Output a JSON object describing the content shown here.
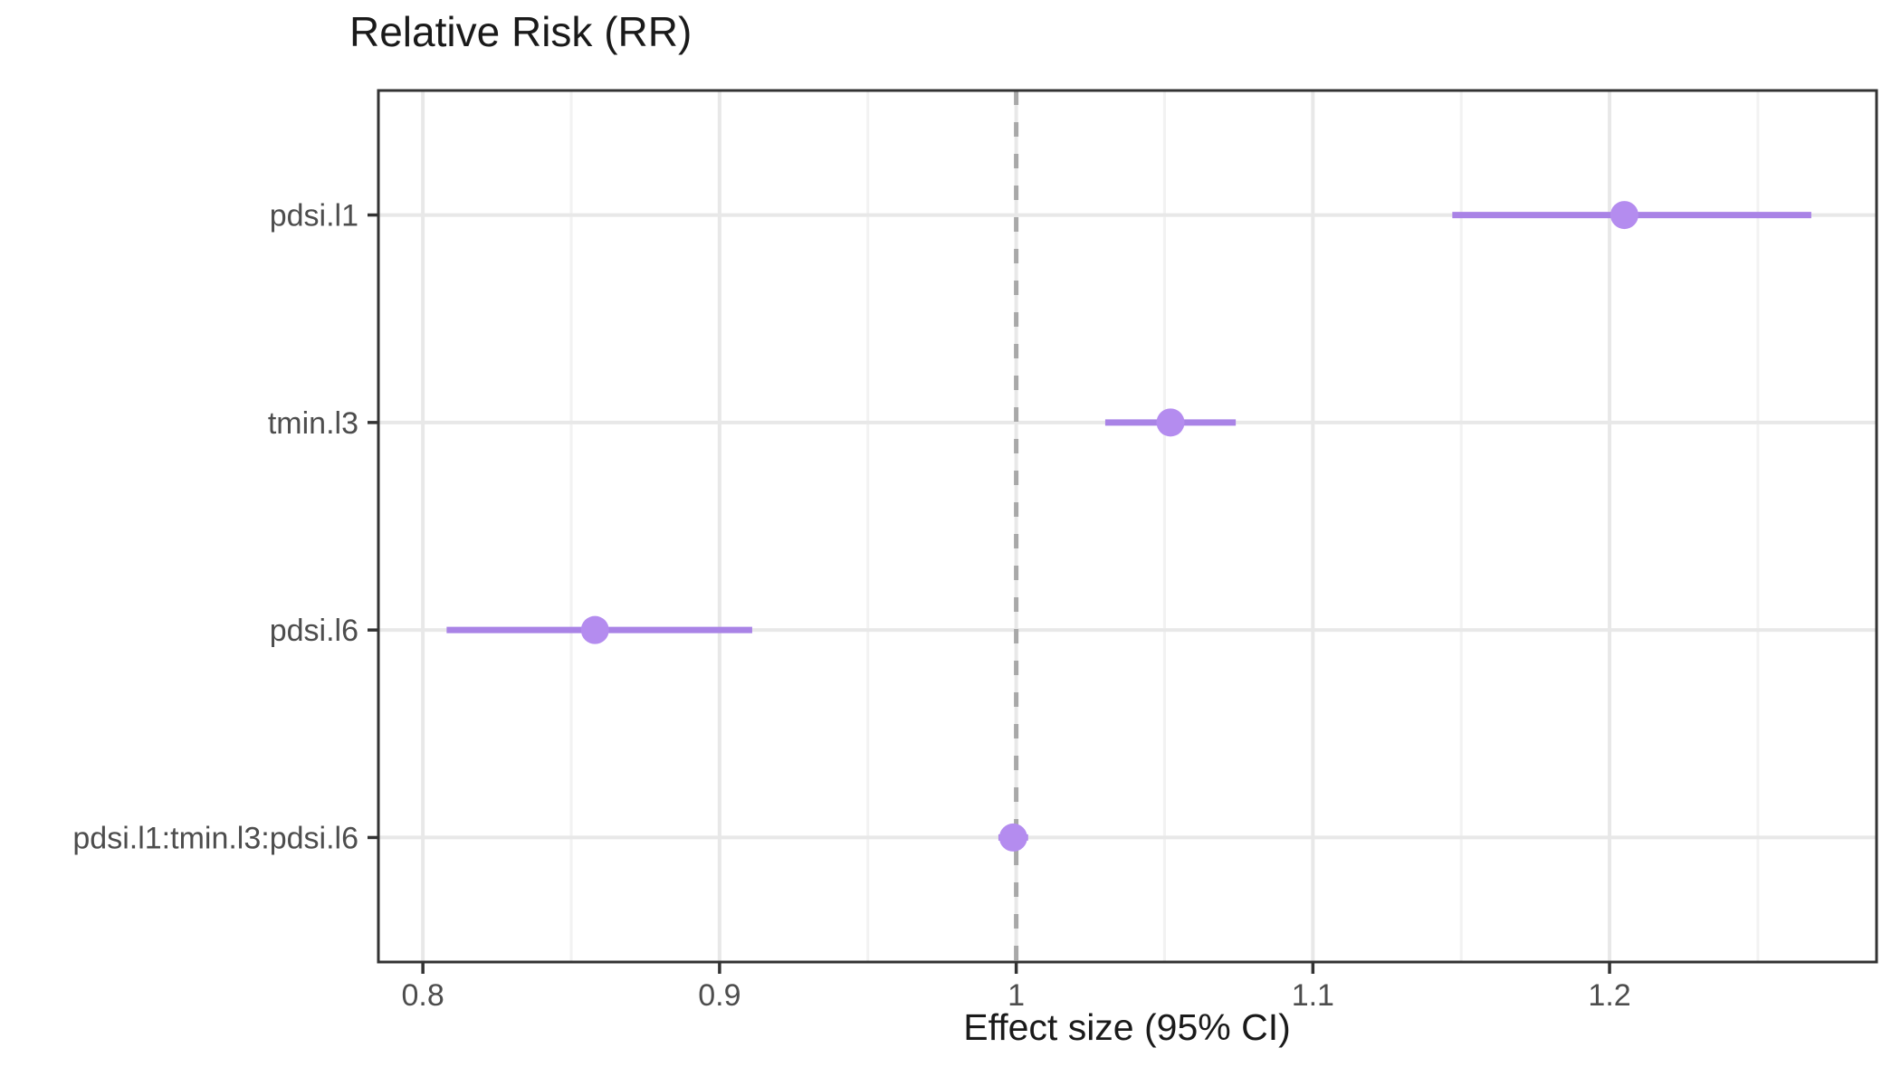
{
  "chart_data": {
    "type": "scatter",
    "subtype": "forest-pointrange",
    "title": "Relative Risk (RR)",
    "xlabel": "Effect size (95% CI)",
    "ylabel": "",
    "categories": [
      "pdsi.l1",
      "tmin.l3",
      "pdsi.l6",
      "pdsi.l1:tmin.l3:pdsi.l6"
    ],
    "series": [
      {
        "name": "Relative Risk",
        "estimates": [
          1.205,
          1.052,
          0.858,
          0.999
        ],
        "ci_low": [
          1.147,
          1.03,
          0.808,
          0.994
        ],
        "ci_high": [
          1.268,
          1.074,
          0.911,
          1.004
        ]
      }
    ],
    "x_ticks": {
      "values": [
        0.8,
        0.9,
        1.0,
        1.1,
        1.2
      ],
      "labels": [
        "0.8",
        "0.9",
        "1",
        "1.1",
        "1.2"
      ]
    },
    "x_minor_ticks": [
      0.85,
      0.95,
      1.05,
      1.15,
      1.25
    ],
    "xlim": [
      0.785,
      1.29
    ],
    "reference_line_x": 1.0,
    "grid": true,
    "legend": "none",
    "colors": {
      "point": "#B48CEF",
      "ci_line": "#A983E6",
      "reference_line": "#A8A8A8",
      "grid_major": "#E8E8E8",
      "grid_minor": "#F2F2F2",
      "panel_border": "#333333",
      "tick_mark": "#333333",
      "tick_label": "#4D4D4D",
      "text": "#1A1A1A",
      "panel_background": "#FFFFFF"
    }
  }
}
